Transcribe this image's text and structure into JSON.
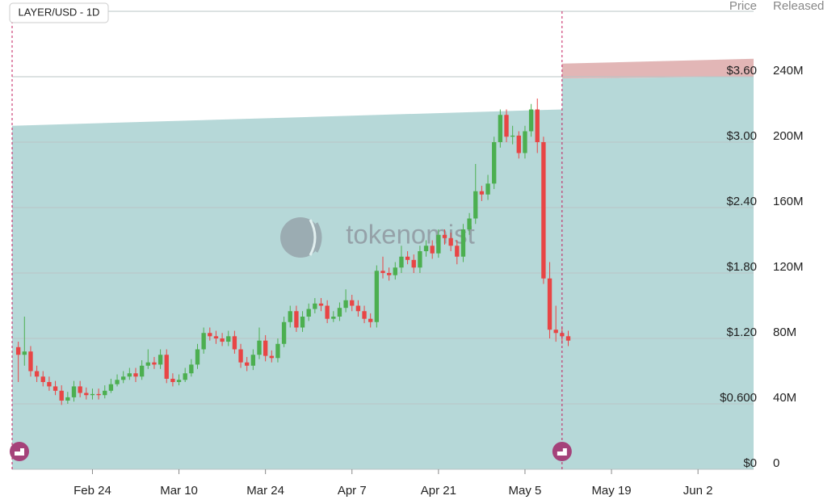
{
  "chart_data": {
    "type": "candlestick",
    "label": "LAYER/USD - 1D",
    "watermark": "tokenomist",
    "ylabel": "Price",
    "y2label": "Released",
    "xlim": [
      "Feb 11",
      "Jun 11"
    ],
    "xticks": [
      "Feb 24",
      "Mar 10",
      "Mar 24",
      "Apr 7",
      "Apr 21",
      "May 5",
      "May 19",
      "Jun 2"
    ],
    "ylim": [
      0,
      4.2
    ],
    "yticks": [
      {
        "value": 0,
        "label": "$0"
      },
      {
        "value": 0.6,
        "label": "$0.600"
      },
      {
        "value": 1.2,
        "label": "$1.20"
      },
      {
        "value": 1.8,
        "label": "$1.80"
      },
      {
        "value": 2.4,
        "label": "$2.40"
      },
      {
        "value": 3.0,
        "label": "$3.00"
      },
      {
        "value": 3.6,
        "label": "$3.60"
      }
    ],
    "y2lim": [
      0,
      280
    ],
    "y2ticks": [
      0,
      {
        "value": 40,
        "label": "40M"
      },
      {
        "value": 80,
        "label": "80M"
      },
      {
        "value": 120,
        "label": "120M"
      },
      {
        "value": 160,
        "label": "160M"
      },
      {
        "value": 200,
        "label": "200M"
      },
      {
        "value": 240,
        "label": "240M"
      }
    ],
    "grid": true,
    "up_color": "#4caf50",
    "down_color": "#e84545",
    "series": [
      {
        "x": [
          "Feb 11",
          "May 11"
        ],
        "values": [
          210,
          220
        ],
        "color": "#b6d8d8",
        "axis": "y2"
      },
      {
        "x": [
          "May 11",
          "Jun 11"
        ],
        "values": [
          239,
          240
        ],
        "color": "#b6d8d8",
        "axis": "y2"
      },
      {
        "x": [
          "May 11",
          "Jun 11"
        ],
        "values": [
          9,
          11
        ],
        "color": "#e2b6b6",
        "axis": "y2",
        "stack": true
      }
    ],
    "x": [
      "Feb 12",
      "Feb 13",
      "Feb 14",
      "Feb 15",
      "Feb 16",
      "Feb 17",
      "Feb 18",
      "Feb 19",
      "Feb 20",
      "Feb 21",
      "Feb 22",
      "Feb 23",
      "Feb 24",
      "Feb 25",
      "Feb 26",
      "Feb 27",
      "Feb 28",
      "Mar 1",
      "Mar 2",
      "Mar 3",
      "Mar 4",
      "Mar 5",
      "Mar 6",
      "Mar 7",
      "Mar 8",
      "Mar 9",
      "Mar 10",
      "Mar 11",
      "Mar 12",
      "Mar 13",
      "Mar 14",
      "Mar 15",
      "Mar 16",
      "Mar 17",
      "Mar 18",
      "Mar 19",
      "Mar 20",
      "Mar 21",
      "Mar 22",
      "Mar 23",
      "Mar 24",
      "Mar 25",
      "Mar 26",
      "Mar 27",
      "Mar 28",
      "Mar 29",
      "Mar 30",
      "Mar 31",
      "Apr 1",
      "Apr 2",
      "Apr 3",
      "Apr 4",
      "Apr 5",
      "Apr 6",
      "Apr 7",
      "Apr 8",
      "Apr 9",
      "Apr 10",
      "Apr 11",
      "Apr 12",
      "Apr 13",
      "Apr 14",
      "Apr 15",
      "Apr 16",
      "Apr 17",
      "Apr 18",
      "Apr 19",
      "Apr 20",
      "Apr 21",
      "Apr 22",
      "Apr 23",
      "Apr 24",
      "Apr 25",
      "Apr 26",
      "Apr 27",
      "Apr 28",
      "Apr 29",
      "Apr 30",
      "May 1",
      "May 2",
      "May 3",
      "May 4",
      "May 5",
      "May 6",
      "May 7",
      "May 8",
      "May 9",
      "May 10",
      "May 11",
      "May 12"
    ],
    "open": [
      1.12,
      1.05,
      1.08,
      0.9,
      0.85,
      0.8,
      0.76,
      0.72,
      0.63,
      0.66,
      0.76,
      0.7,
      0.68,
      0.69,
      0.68,
      0.72,
      0.78,
      0.82,
      0.85,
      0.88,
      0.85,
      0.95,
      0.98,
      0.96,
      1.05,
      0.83,
      0.8,
      0.82,
      0.88,
      0.96,
      1.1,
      1.25,
      1.22,
      1.2,
      1.17,
      1.22,
      1.1,
      0.98,
      0.95,
      1.05,
      1.18,
      1.04,
      1.02,
      1.15,
      1.35,
      1.45,
      1.3,
      1.4,
      1.47,
      1.52,
      1.5,
      1.38,
      1.4,
      1.48,
      1.55,
      1.5,
      1.45,
      1.38,
      1.35,
      1.82,
      1.8,
      1.78,
      1.85,
      1.95,
      1.92,
      1.85,
      2.0,
      2.05,
      1.98,
      2.15,
      2.12,
      2.05,
      1.95,
      2.2,
      2.3,
      2.55,
      2.52,
      2.62,
      3.0,
      3.25,
      3.05,
      3.06,
      2.9,
      3.1,
      3.3,
      3.0,
      1.75,
      1.28,
      1.25,
      1.22
    ],
    "high": [
      1.17,
      1.4,
      1.13,
      0.95,
      0.9,
      0.85,
      0.81,
      0.77,
      0.71,
      0.81,
      0.81,
      0.75,
      0.74,
      0.74,
      0.77,
      0.83,
      0.87,
      0.9,
      0.93,
      0.93,
      1.0,
      1.1,
      1.03,
      1.1,
      1.1,
      0.88,
      0.87,
      0.93,
      1.01,
      1.15,
      1.3,
      1.3,
      1.27,
      1.25,
      1.27,
      1.27,
      1.15,
      1.03,
      1.1,
      1.3,
      1.23,
      1.09,
      1.2,
      1.4,
      1.5,
      1.5,
      1.45,
      1.52,
      1.57,
      1.57,
      1.55,
      1.45,
      1.53,
      1.65,
      1.6,
      1.55,
      1.5,
      1.43,
      1.87,
      1.95,
      1.85,
      1.9,
      2.05,
      2.0,
      1.97,
      2.05,
      2.1,
      2.1,
      2.2,
      2.2,
      2.17,
      2.1,
      2.25,
      2.35,
      2.8,
      2.6,
      2.7,
      3.05,
      3.3,
      3.3,
      3.15,
      3.1,
      3.15,
      3.35,
      3.4,
      3.05,
      1.9,
      1.5,
      1.3,
      1.27
    ],
    "low": [
      0.8,
      0.95,
      0.85,
      0.8,
      0.76,
      0.72,
      0.68,
      0.59,
      0.6,
      0.62,
      0.66,
      0.64,
      0.64,
      0.64,
      0.65,
      0.7,
      0.76,
      0.79,
      0.82,
      0.8,
      0.82,
      0.92,
      0.92,
      0.92,
      0.79,
      0.76,
      0.77,
      0.8,
      0.85,
      0.92,
      1.06,
      1.18,
      1.15,
      1.13,
      1.13,
      1.06,
      0.93,
      0.9,
      0.91,
      1.01,
      0.99,
      0.98,
      0.98,
      1.12,
      1.3,
      1.26,
      1.26,
      1.36,
      1.43,
      1.45,
      1.34,
      1.35,
      1.36,
      1.44,
      1.45,
      1.4,
      1.34,
      1.3,
      1.3,
      1.75,
      1.73,
      1.74,
      1.8,
      1.88,
      1.8,
      1.8,
      1.95,
      1.93,
      1.94,
      2.06,
      2.0,
      1.88,
      1.9,
      2.15,
      2.25,
      2.46,
      2.47,
      2.57,
      2.95,
      3.0,
      2.98,
      2.85,
      2.85,
      3.05,
      2.9,
      1.7,
      1.2,
      1.17,
      1.15,
      1.13
    ],
    "close": [
      1.05,
      1.08,
      0.9,
      0.85,
      0.8,
      0.76,
      0.72,
      0.63,
      0.66,
      0.76,
      0.7,
      0.68,
      0.69,
      0.68,
      0.72,
      0.78,
      0.82,
      0.85,
      0.88,
      0.85,
      0.95,
      0.98,
      0.96,
      1.05,
      0.83,
      0.8,
      0.82,
      0.88,
      0.96,
      1.1,
      1.25,
      1.22,
      1.2,
      1.17,
      1.22,
      1.1,
      0.98,
      0.95,
      1.05,
      1.18,
      1.04,
      1.02,
      1.15,
      1.35,
      1.45,
      1.3,
      1.4,
      1.47,
      1.52,
      1.5,
      1.38,
      1.4,
      1.48,
      1.55,
      1.5,
      1.45,
      1.38,
      1.35,
      1.82,
      1.8,
      1.78,
      1.85,
      1.95,
      1.92,
      1.85,
      2.0,
      2.05,
      1.98,
      2.15,
      2.12,
      2.05,
      1.95,
      2.2,
      2.3,
      2.55,
      2.52,
      2.62,
      3.0,
      3.25,
      3.05,
      3.06,
      2.9,
      3.1,
      3.3,
      3.0,
      1.75,
      1.28,
      1.25,
      1.22,
      1.18
    ]
  }
}
